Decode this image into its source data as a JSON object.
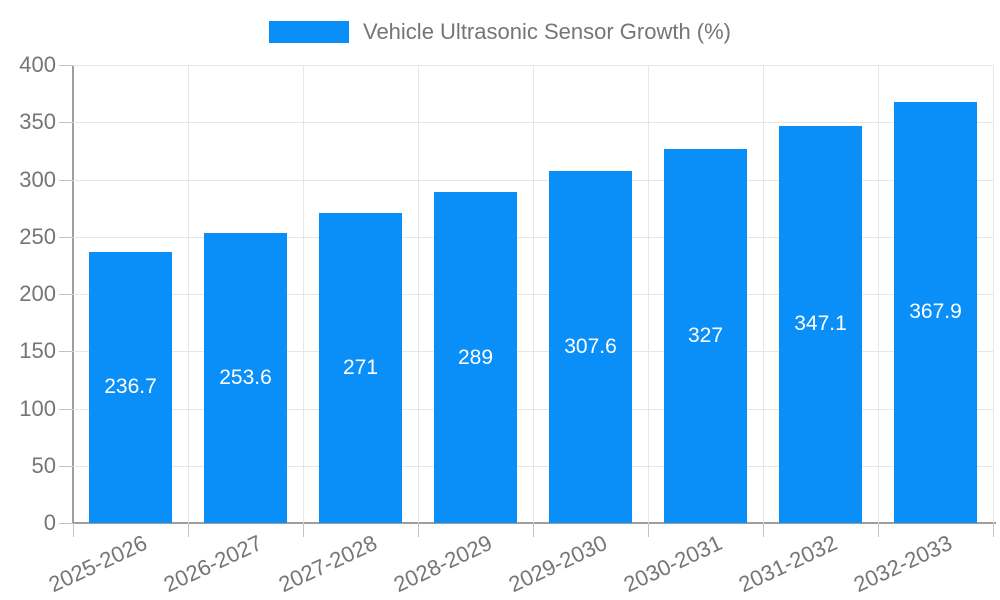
{
  "chart_data": {
    "type": "bar",
    "legend": "Vehicle Ultrasonic Sensor Growth (%)",
    "legend_position": "top-center",
    "categories": [
      "2025-2026",
      "2026-2027",
      "2027-2028",
      "2028-2029",
      "2029-2030",
      "2030-2031",
      "2031-2032",
      "2032-2033"
    ],
    "values": [
      236.7,
      253.6,
      271,
      289,
      307.6,
      327,
      347.1,
      367.9
    ],
    "value_labels": [
      "236.7",
      "253.6",
      "271",
      "289",
      "307.6",
      "327",
      "347.1",
      "367.9"
    ],
    "xlabel": "",
    "ylabel": "",
    "ylim": [
      0,
      400
    ],
    "yticks": [
      0,
      50,
      100,
      150,
      200,
      250,
      300,
      350,
      400
    ],
    "grid": true,
    "x_label_rotation_deg": -25,
    "colors": {
      "bar": "#0a8ff8",
      "text": "#757575",
      "grid": "#e6e6e6",
      "axis": "#9e9e9e",
      "bar_label": "#ffffff"
    }
  }
}
